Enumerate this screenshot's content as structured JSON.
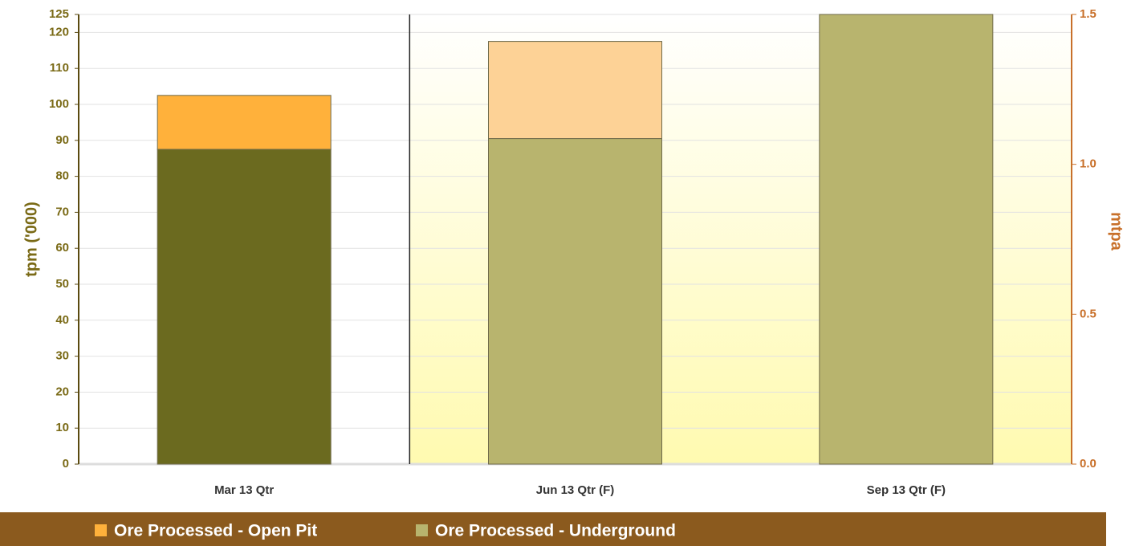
{
  "chart_data": {
    "type": "stacked_bar",
    "categories": [
      "Mar 13 Qtr",
      "Jun 13 Qtr (F)",
      "Sep 13 Qtr (F)"
    ],
    "series": [
      {
        "name": "Ore Processed - Underground",
        "color": "#b8b46e",
        "point_colors": [
          "#6b6a1f",
          "#b8b46e",
          "#b8b46e"
        ],
        "values": [
          87.5,
          90.5,
          125
        ]
      },
      {
        "name": "Ore Processed - Open Pit",
        "color": "#ffb13b",
        "point_colors": [
          "#ffb13b",
          "#fdd296",
          "#fdd296"
        ],
        "values": [
          15,
          27,
          0
        ]
      }
    ],
    "y_label": "tpm ('000)",
    "y2_label": "mtpa",
    "ylim": [
      0,
      125
    ],
    "yticks": [
      0,
      10,
      20,
      30,
      40,
      50,
      60,
      70,
      80,
      90,
      100,
      110,
      120,
      125
    ],
    "y2lim": [
      0,
      1.5
    ],
    "y2ticks": [
      {
        "value": 0,
        "label": "0.0"
      },
      {
        "value": 0.5,
        "label": "0.5"
      },
      {
        "value": 1,
        "label": "1.0"
      },
      {
        "value": 1.5,
        "label": "1.5"
      }
    ],
    "grid": true
  }
}
